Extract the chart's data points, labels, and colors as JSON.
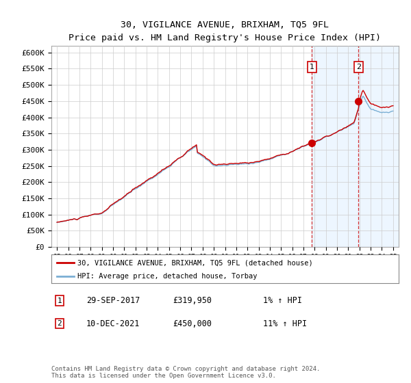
{
  "title": "30, VIGILANCE AVENUE, BRIXHAM, TQ5 9FL",
  "subtitle": "Price paid vs. HM Land Registry's House Price Index (HPI)",
  "title_fontsize": 11,
  "subtitle_fontsize": 9,
  "ylabel_ticks": [
    "£0",
    "£50K",
    "£100K",
    "£150K",
    "£200K",
    "£250K",
    "£300K",
    "£350K",
    "£400K",
    "£450K",
    "£500K",
    "£550K",
    "£600K"
  ],
  "ylim": [
    0,
    620000
  ],
  "yticks": [
    0,
    50000,
    100000,
    150000,
    200000,
    250000,
    300000,
    350000,
    400000,
    450000,
    500000,
    550000,
    600000
  ],
  "xlim_start": 1994.5,
  "xlim_end": 2025.5,
  "xticks": [
    1995,
    1996,
    1997,
    1998,
    1999,
    2000,
    2001,
    2002,
    2003,
    2004,
    2005,
    2006,
    2007,
    2008,
    2009,
    2010,
    2011,
    2012,
    2013,
    2014,
    2015,
    2016,
    2017,
    2018,
    2019,
    2020,
    2021,
    2022,
    2023,
    2024,
    2025
  ],
  "hpi_color": "#7bafd4",
  "property_color": "#cc0000",
  "marker1_x": 2017.75,
  "marker1_y": 319950,
  "marker2_x": 2021.92,
  "marker2_y": 450000,
  "marker1_date": "29-SEP-2017",
  "marker1_price": "£319,950",
  "marker1_hpi": "1% ↑ HPI",
  "marker2_date": "10-DEC-2021",
  "marker2_price": "£450,000",
  "marker2_hpi": "11% ↑ HPI",
  "legend_line1": "30, VIGILANCE AVENUE, BRIXHAM, TQ5 9FL (detached house)",
  "legend_line2": "HPI: Average price, detached house, Torbay",
  "footnote": "Contains HM Land Registry data © Crown copyright and database right 2024.\nThis data is licensed under the Open Government Licence v3.0.",
  "background_color": "#ffffff",
  "grid_color": "#cccccc",
  "shaded_color": "#ddeeff"
}
